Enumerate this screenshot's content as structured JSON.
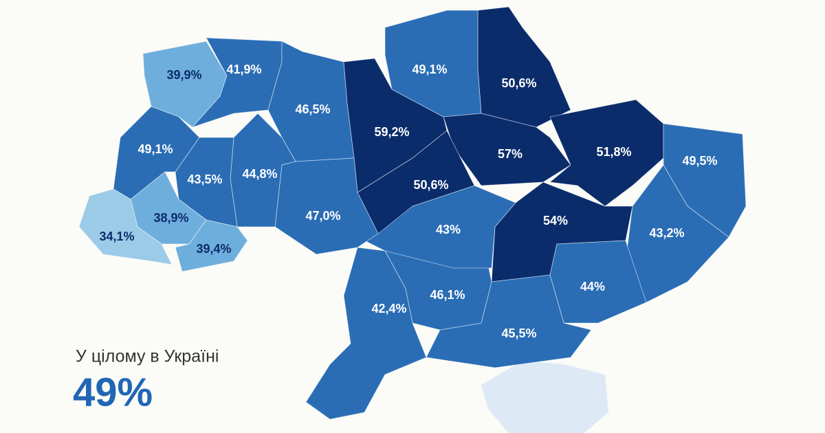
{
  "summary": {
    "caption": "У цілому в Україні",
    "value": "49%"
  },
  "regions": [
    {
      "label": "39,9%",
      "color": "#6eaedc"
    },
    {
      "label": "41,9%",
      "color": "#2a6db5"
    },
    {
      "label": "46,5%",
      "color": "#2a6db5"
    },
    {
      "label": "59,2%",
      "color": "#0b2c6b"
    },
    {
      "label": "50,6%",
      "color": "#0b2c6b"
    },
    {
      "label": "49,1%",
      "color": "#2a6db5"
    },
    {
      "label": "57%",
      "color": "#0b2c6b"
    },
    {
      "label": "51,8%",
      "color": "#0b2c6b"
    },
    {
      "label": "49,5%",
      "color": "#2a6db5"
    },
    {
      "label": "43,2%",
      "color": "#2a6db5"
    },
    {
      "label": "54%",
      "color": "#0b2c6b"
    },
    {
      "label": "44%",
      "color": "#2a6db5"
    },
    {
      "label": "45,5%",
      "color": "#2a6db5"
    },
    {
      "label": "46,1%",
      "color": "#2a6db5"
    },
    {
      "label": "42,4%",
      "color": "#2a6db5"
    },
    {
      "label": "43%",
      "color": "#2a6db5"
    },
    {
      "label": "50,6%",
      "color": "#0b2c6b"
    },
    {
      "label": "47,0%",
      "color": "#2a6db5"
    },
    {
      "label": "44,8%",
      "color": "#2a6db5"
    },
    {
      "label": "43,5%",
      "color": "#2a6db5"
    },
    {
      "label": "49,1%",
      "color": "#2a6db5"
    },
    {
      "label": "38,9%",
      "color": "#6eaedc"
    },
    {
      "label": "39,4%",
      "color": "#6eaedc"
    },
    {
      "label": "34,1%",
      "color": "#9ccbe8"
    }
  ]
}
